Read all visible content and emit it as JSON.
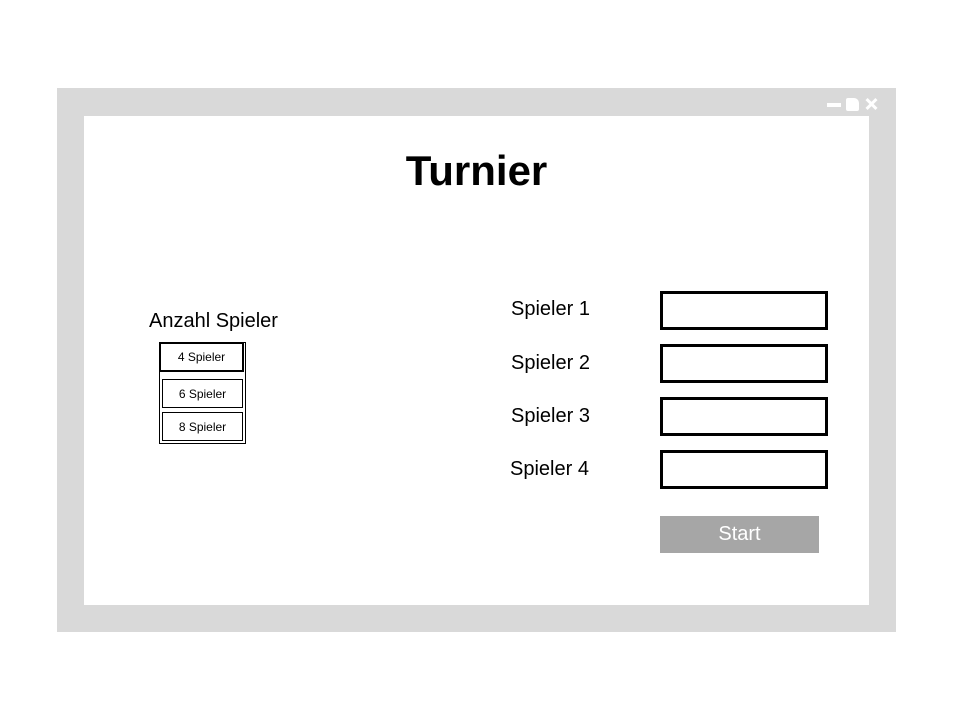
{
  "window": {
    "controls": [
      "minimize-icon",
      "maximize-icon",
      "close-icon"
    ]
  },
  "title": "Turnier",
  "player_count": {
    "label": "Anzahl Spieler",
    "options": [
      "4 Spieler",
      "6 Spieler",
      "8 Spieler"
    ],
    "selected": "4 Spieler"
  },
  "players": [
    {
      "label": "Spieler 1",
      "value": ""
    },
    {
      "label": "Spieler 2",
      "value": ""
    },
    {
      "label": "Spieler 3",
      "value": ""
    },
    {
      "label": "Spieler 4",
      "value": ""
    }
  ],
  "start_button": {
    "label": "Start"
  },
  "colors": {
    "window_frame": "#d9d9d9",
    "start_button": "#a6a6a6"
  }
}
